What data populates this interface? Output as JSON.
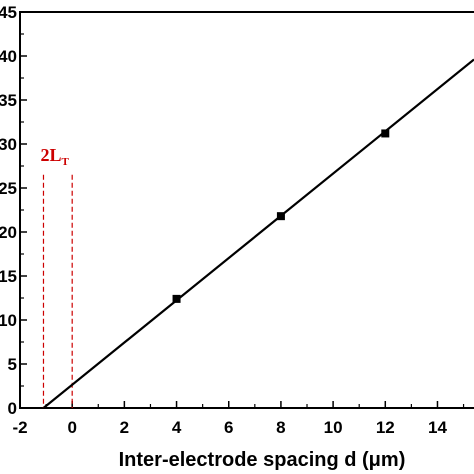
{
  "chart_data": {
    "type": "scatter",
    "xlabel": "Inter-electrode spacing d (μm)",
    "ylabel": "",
    "xlim": [
      -2,
      15.4
    ],
    "ylim": [
      0,
      45
    ],
    "xticks": [
      -2,
      0,
      2,
      4,
      6,
      8,
      10,
      12,
      14
    ],
    "yticks": [
      0,
      5,
      10,
      15,
      20,
      25,
      30,
      35,
      40,
      45
    ],
    "points": [
      {
        "x": 4,
        "y": 12.4
      },
      {
        "x": 8,
        "y": 21.8
      },
      {
        "x": 12,
        "y": 31.2
      }
    ],
    "fit_line": {
      "x0": -1.1,
      "y0": 0,
      "x1": 15.4,
      "y1": 39.6
    },
    "transfer_length_marker": {
      "label_main": "2L",
      "label_sub": "T",
      "x_left": -1.1,
      "x_right": 0,
      "top_y": 26.5
    },
    "colors": {
      "axis": "#000000",
      "line": "#000000",
      "marker": "#000000",
      "annotation": "#cc0000"
    },
    "grid": false,
    "legend": "none"
  }
}
